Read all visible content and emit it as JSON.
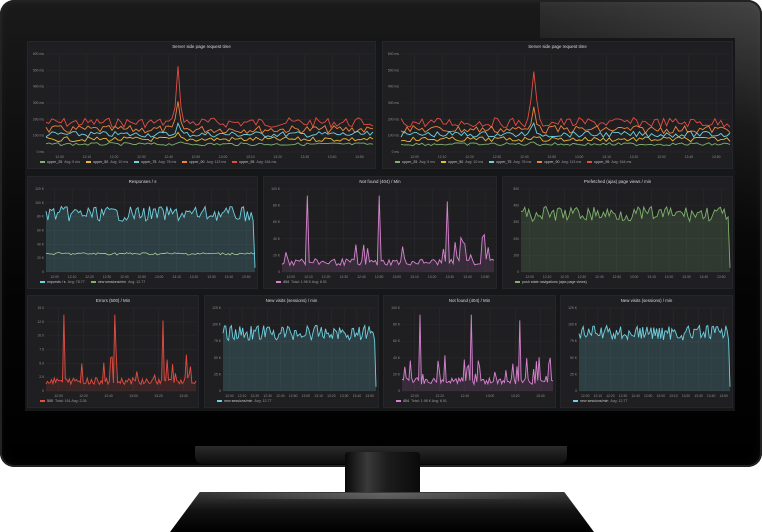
{
  "dashboard": {
    "panels": [
      {
        "title": "Server side page request time",
        "yticks": [
          "600 ms",
          "500 ms",
          "400 ms",
          "300 ms",
          "200 ms",
          "100 ms",
          "0 ms"
        ],
        "xticks": [
          "12:00",
          "12:10",
          "12:20",
          "12:30",
          "12:40",
          "12:50",
          "13:00",
          "13:10",
          "13:20",
          "13:30",
          "13:40",
          "13:50"
        ],
        "legend": [
          {
            "label": "upper_25",
            "stat": "Avg: 5 ms",
            "color": "#7eb26d"
          },
          {
            "label": "upper_50",
            "stat": "Avg: 10 ms",
            "color": "#eab839"
          },
          {
            "label": "upper_75",
            "stat": "Avg: 78 ms",
            "color": "#6ed0e0"
          },
          {
            "label": "upper_90",
            "stat": "Avg: 113 ms",
            "color": "#ef843c"
          },
          {
            "label": "upper_95",
            "stat": "Avg: 164 ms",
            "color": "#e24d42"
          }
        ],
        "chart_data": {
          "type": "line",
          "spike": true
        }
      },
      {
        "title": "Server side page request time",
        "yticks": [
          "600 ms",
          "500 ms",
          "400 ms",
          "300 ms",
          "200 ms",
          "100 ms",
          "0 ms"
        ],
        "xticks": [
          "12:00",
          "12:10",
          "12:20",
          "12:30",
          "12:40",
          "12:50",
          "13:00",
          "13:10",
          "13:20",
          "13:30",
          "13:40",
          "13:50"
        ],
        "legend": [
          {
            "label": "upper_25",
            "stat": "Avg: 5 ms",
            "color": "#7eb26d"
          },
          {
            "label": "upper_50",
            "stat": "Avg: 10 ms",
            "color": "#eab839"
          },
          {
            "label": "upper_75",
            "stat": "Avg: 78 ms",
            "color": "#6ed0e0"
          },
          {
            "label": "upper_90",
            "stat": "Avg: 113 ms",
            "color": "#ef843c"
          },
          {
            "label": "upper_95",
            "stat": "Avg: 164 ms",
            "color": "#e24d42"
          }
        ],
        "chart_data": {
          "type": "line",
          "spike": true
        }
      },
      {
        "title": "Responses / s",
        "yticks": [
          "120 K",
          "100 K",
          "80 K",
          "60 K",
          "40 K",
          "20 K",
          "0"
        ],
        "xticks": [
          "12:00",
          "12:10",
          "12:20",
          "12:30",
          "12:40",
          "12:50",
          "13:00",
          "13:10",
          "13:20",
          "13:30",
          "13:40",
          "13:50"
        ],
        "legend": [
          {
            "label": "requests / s",
            "stat": "Avg: 78.77",
            "color": "#6ed0e0"
          },
          {
            "label": "new sessions/min",
            "stat": "Avg: 12.77",
            "color": "#7eb26d"
          }
        ],
        "chart_data": {
          "type": "area",
          "color": "#6ed0e0"
        }
      },
      {
        "title": "Not found (404) / Min",
        "yticks": [
          "100 K",
          "80 K",
          "60 K",
          "40 K",
          "20 K",
          "0"
        ],
        "xticks": [
          "12:00",
          "12:10",
          "12:20",
          "12:30",
          "12:40",
          "12:50",
          "13:00",
          "13:10",
          "13:20",
          "13:30",
          "13:40",
          "13:50"
        ],
        "legend": [
          {
            "label": "404",
            "stat": "Total: 1.98 K   Avg: 8.91",
            "color": "#d683ce"
          }
        ],
        "chart_data": {
          "type": "spiky",
          "color": "#d683ce"
        }
      },
      {
        "title": "Prefetched (ajax) page views / min",
        "yticks": [
          "500",
          "400",
          "300",
          "200",
          "100",
          "0"
        ],
        "xticks": [
          "12:00",
          "12:10",
          "12:20",
          "12:30",
          "12:40",
          "12:50",
          "13:00",
          "13:10",
          "13:20",
          "13:30",
          "13:40",
          "13:50"
        ],
        "legend": [
          {
            "label": "push state navigations (ajax page views)",
            "stat": "",
            "color": "#7eb26d"
          }
        ],
        "chart_data": {
          "type": "area",
          "color": "#7eb26d"
        }
      },
      {
        "title": "Errors (500) / Min",
        "yticks": [
          "15.0",
          "12.5",
          "10.0",
          "7.5",
          "5.0",
          "2.5",
          "0"
        ],
        "xticks": [
          "12:00",
          "12:20",
          "12:40",
          "13:00",
          "13:20",
          "13:40"
        ],
        "legend": [
          {
            "label": "500",
            "stat": "Total: 161   Avg: 2.26",
            "color": "#e24d42"
          }
        ],
        "chart_data": {
          "type": "spiky",
          "color": "#e24d42"
        }
      },
      {
        "title": "New visits (sessions) / min",
        "yticks": [
          "125 K",
          "100 K",
          "75 K",
          "50 K",
          "25 K",
          "0"
        ],
        "xticks": [
          "12:00",
          "12:10",
          "12:20",
          "12:30",
          "12:40",
          "12:50",
          "13:00",
          "13:10",
          "13:20",
          "13:30",
          "13:40",
          "13:50"
        ],
        "legend": [
          {
            "label": "new sessions/min",
            "stat": "Avg: 12.77",
            "color": "#6ed0e0"
          }
        ],
        "chart_data": {
          "type": "area",
          "color": "#6ed0e0"
        }
      },
      {
        "title": "Not found (404) / Min",
        "yticks": [
          "100 K",
          "80 K",
          "60 K",
          "40 K",
          "20 K",
          "0"
        ],
        "xticks": [
          "12:00",
          "12:20",
          "12:40",
          "13:00",
          "13:20",
          "13:40"
        ],
        "legend": [
          {
            "label": "404",
            "stat": "Total: 1.98 K   Avg: 8.91",
            "color": "#d683ce"
          }
        ],
        "chart_data": {
          "type": "spiky",
          "color": "#d683ce"
        }
      },
      {
        "title": "New visits (sessions) / min",
        "yticks": [
          "125 K",
          "100 K",
          "75 K",
          "50 K",
          "25 K",
          "0"
        ],
        "xticks": [
          "12:00",
          "12:10",
          "12:20",
          "12:30",
          "12:40",
          "12:50",
          "13:00",
          "13:10",
          "13:20",
          "13:30",
          "13:40",
          "13:50"
        ],
        "legend": [
          {
            "label": "new sessions/min",
            "stat": "Avg: 12.77",
            "color": "#6ed0e0"
          }
        ],
        "chart_data": {
          "type": "area",
          "color": "#6ed0e0"
        }
      }
    ]
  }
}
